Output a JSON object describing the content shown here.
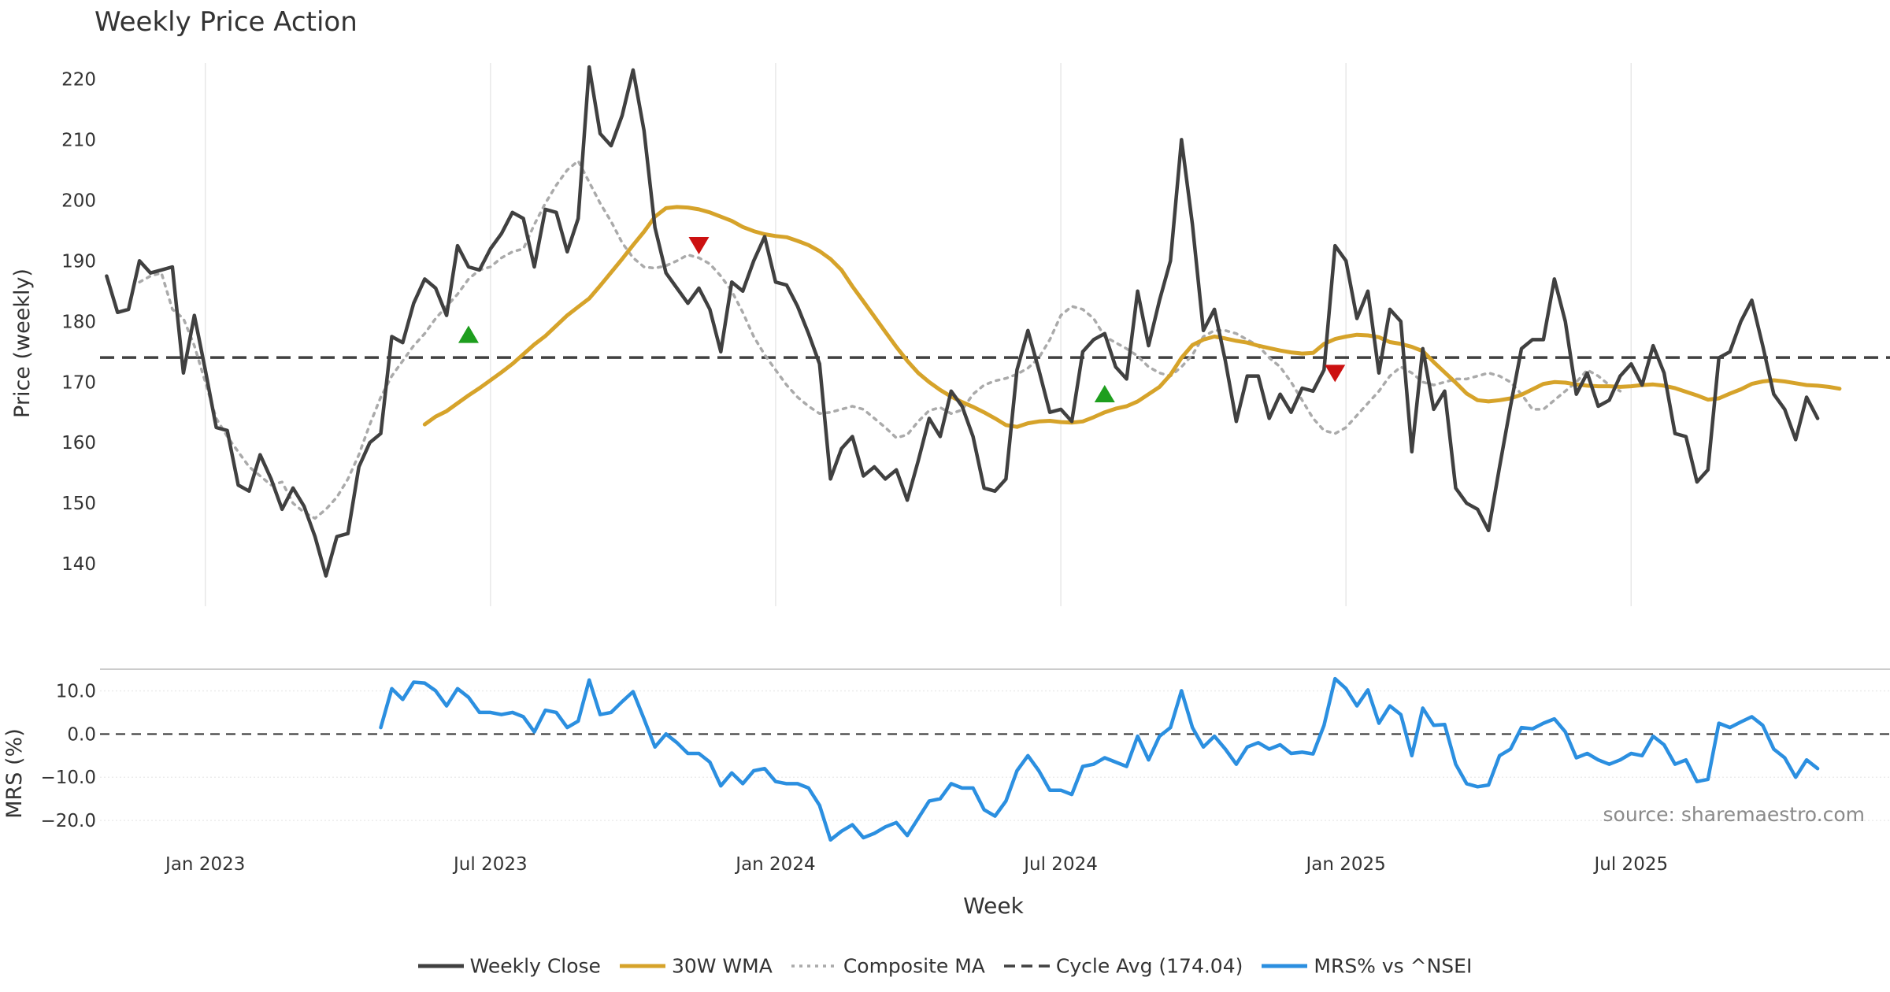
{
  "colors": {
    "close": "#404040",
    "wma": "#d6a32a",
    "composite": "#aaaaaa",
    "cycle": "#404040",
    "mrs": "#2b8fe0",
    "grid": "#e8e8e8",
    "buy": "#1e9e1e",
    "sell": "#cc1111"
  },
  "chart_data": [
    {
      "type": "line",
      "title": "Weekly Price Action",
      "xlabel": "Week",
      "ylabel": "Price (weekly)",
      "ylim": [
        133,
        225
      ],
      "yticks": [
        140,
        150,
        160,
        170,
        180,
        190,
        200,
        210,
        220
      ],
      "xlim": [
        -9.6,
        153.6
      ],
      "x_tick_weeks": [
        0,
        26,
        52,
        78,
        104,
        130
      ],
      "x_tick_labels": [
        "Jan 2023",
        "Jul 2023",
        "Jan 2024",
        "Jul 2024",
        "Jan 2025",
        "Jul 2025"
      ],
      "grid": "vertical",
      "series": [
        {
          "name": "Weekly Close",
          "start_week": -9,
          "values": [
            187.5,
            181.5,
            182,
            190,
            188,
            188.5,
            189,
            171.5,
            181,
            172,
            162.5,
            162,
            153,
            152,
            158,
            154,
            149,
            152.5,
            149.5,
            144.5,
            138,
            144.5,
            145,
            156,
            160,
            161.5,
            177.5,
            176.5,
            183,
            187,
            185.5,
            181,
            192.5,
            189,
            188.5,
            192,
            194.5,
            198,
            197,
            189,
            198.5,
            198,
            191.5,
            197,
            222,
            211,
            209,
            214,
            221.5,
            211.5,
            195.5,
            188,
            185.5,
            183,
            185.5,
            182,
            175,
            186.5,
            185,
            190,
            194,
            186.5,
            186,
            182.5,
            178,
            173,
            154,
            159,
            161,
            154.5,
            156,
            154,
            155.5,
            150.5,
            157,
            164,
            161,
            168.5,
            166,
            161,
            152.5,
            152,
            154,
            172,
            178.5,
            172,
            165,
            165.5,
            163.5,
            175,
            177,
            178,
            172.5,
            170.5,
            185,
            176,
            183.5,
            190,
            210,
            196,
            178.5,
            182,
            173.5,
            163.5,
            171,
            171,
            164,
            168,
            165,
            169,
            168.5,
            172,
            192.5,
            190,
            180.5,
            185,
            171.5,
            182,
            180,
            158.5,
            175.5,
            165.5,
            168.5,
            152.5,
            150,
            149,
            145.5,
            156,
            166,
            175.5,
            177,
            177,
            187,
            180,
            168,
            171.5,
            166,
            167,
            171,
            173,
            169.5,
            176,
            171.5,
            161.5,
            161,
            153.5,
            155.5,
            174,
            175,
            180,
            183.5,
            176,
            168,
            165.5,
            160.5,
            167.5,
            164
          ]
        },
        {
          "name": "30W WMA",
          "start_week": 20,
          "values": [
            163,
            164.3,
            165.2,
            166.5,
            167.8,
            169,
            170.3,
            171.6,
            173,
            174.6,
            176.2,
            177.6,
            179.3,
            181,
            182.4,
            183.8,
            185.9,
            188.1,
            190.3,
            192.6,
            194.8,
            197.3,
            198.7,
            198.9,
            198.8,
            198.5,
            198,
            197.3,
            196.6,
            195.6,
            194.9,
            194.4,
            194.1,
            193.9,
            193.3,
            192.6,
            191.6,
            190.3,
            188.5,
            185.8,
            183.3,
            180.8,
            178.3,
            175.8,
            173.5,
            171.5,
            170,
            168.7,
            167.6,
            166.7,
            165.9,
            165,
            164,
            162.9,
            162.6,
            163.2,
            163.5,
            163.6,
            163.4,
            163.3,
            163.5,
            164.2,
            165,
            165.6,
            166,
            166.8,
            168,
            169.2,
            171.2,
            174,
            176.1,
            177,
            177.5,
            177.2,
            176.8,
            176.5,
            176,
            175.6,
            175.2,
            174.9,
            174.7,
            174.8,
            176.3,
            177.1,
            177.5,
            177.8,
            177.7,
            177.4,
            176.6,
            176.3,
            175.8,
            175.1,
            173.3,
            171.6,
            169.9,
            168.1,
            167,
            166.8,
            167,
            167.3,
            167.9,
            168.8,
            169.7,
            170,
            169.9,
            169.6,
            169.4,
            169.3,
            169.3,
            169.2,
            169.3,
            169.5,
            169.6,
            169.4,
            169,
            168.4,
            167.8,
            167.1,
            167.3,
            168.1,
            168.8,
            169.7,
            170.1,
            170.3,
            170.1,
            169.8,
            169.5,
            169.4,
            169.2,
            168.9
          ]
        },
        {
          "name": "Composite MA",
          "start_week": -6,
          "values": [
            186.5,
            187.5,
            188,
            182,
            180.5,
            176,
            170,
            164,
            161,
            158.5,
            156,
            154.5,
            153,
            153.5,
            150,
            148.5,
            147.5,
            149,
            151,
            154,
            158,
            163,
            167.5,
            171,
            173.5,
            176,
            178,
            180.5,
            182.5,
            184.5,
            187,
            188.5,
            189,
            190.5,
            191.5,
            192,
            196,
            199.5,
            202.5,
            205,
            206.5,
            203,
            199.5,
            196.5,
            193,
            190.5,
            189,
            188.8,
            189.2,
            190,
            191,
            190.5,
            189.5,
            187.5,
            185,
            181.5,
            177.5,
            174.5,
            172,
            169.5,
            167.5,
            166,
            164.8,
            165,
            165.5,
            166,
            165.5,
            164,
            162.5,
            160.8,
            161.3,
            163.5,
            165.3,
            165.8,
            164.8,
            165.4,
            168,
            169.5,
            170.2,
            170.6,
            171.3,
            172.3,
            174,
            177,
            181,
            182.5,
            182,
            180.5,
            177.5,
            176.5,
            175.5,
            174.3,
            172.5,
            171.5,
            171,
            172.5,
            174.5,
            177.5,
            178.5,
            178.5,
            178,
            177,
            176,
            174,
            172.5,
            170,
            167,
            164,
            162,
            161.5,
            162.5,
            164.5,
            166.5,
            168.5,
            171,
            172.5,
            171.5,
            170,
            169.5,
            170,
            170.5,
            170.5,
            171,
            171.5,
            171,
            170,
            168,
            165.5,
            165.5,
            167,
            168.5,
            170,
            172,
            171,
            169.5,
            168.5
          ]
        },
        {
          "name": "Cycle Avg (174.04)",
          "value": 174.04
        }
      ],
      "annotations": [
        {
          "type": "buy",
          "week": 24,
          "price": 177.8
        },
        {
          "type": "sell",
          "week": 45,
          "price": 192.6
        },
        {
          "type": "buy",
          "week": 82,
          "price": 168
        },
        {
          "type": "sell",
          "week": 103,
          "price": 171.5
        }
      ]
    },
    {
      "type": "line",
      "xlabel": "Week",
      "ylabel": "MRS (%)",
      "ylim": [
        -26,
        15
      ],
      "yticks": [
        -20,
        -10,
        0,
        10
      ],
      "ytick_labels": [
        "−20.0",
        "−10.0",
        "0.0",
        "10.0"
      ],
      "series": [
        {
          "name": "MRS% vs ^NSEI",
          "start_week": 16,
          "values": [
            1.5,
            10.5,
            8,
            12,
            11.8,
            10,
            6.5,
            10.5,
            8.5,
            5,
            5,
            4.5,
            5,
            4,
            0.5,
            5.5,
            5,
            1.5,
            3,
            12.5,
            4.5,
            5,
            7.5,
            9.8,
            3.5,
            -3,
            0,
            -2,
            -4.5,
            -4.5,
            -6.5,
            -12,
            -9,
            -11.5,
            -8.5,
            -8,
            -11,
            -11.5,
            -11.5,
            -12.5,
            -16.5,
            -24.5,
            -22.5,
            -21,
            -24,
            -23,
            -21.5,
            -20.5,
            -23.5,
            -19.5,
            -15.5,
            -15,
            -11.5,
            -12.5,
            -12.5,
            -17.5,
            -19,
            -15.5,
            -8.5,
            -5,
            -8.5,
            -13,
            -13,
            -14,
            -7.5,
            -7,
            -5.5,
            -6.5,
            -7.5,
            -0.5,
            -6,
            -0.5,
            1.5,
            10,
            1.5,
            -3,
            -0.5,
            -3.5,
            -7,
            -3,
            -2,
            -3.5,
            -2.5,
            -4.5,
            -4.2,
            -4.6,
            2,
            12.8,
            10.5,
            6.5,
            10.2,
            2.5,
            6.5,
            4.5,
            -5,
            6,
            2,
            2.2,
            -7,
            -11.5,
            -12.2,
            -11.8,
            -5,
            -3.5,
            1.5,
            1.2,
            2.5,
            3.5,
            0.5,
            -5.5,
            -4.5,
            -6,
            -7,
            -6,
            -4.5,
            -5,
            -0.5,
            -2.5,
            -7,
            -6,
            -11,
            -10.5,
            2.5,
            1.5,
            2.8,
            4,
            2,
            -3.5,
            -5.5,
            -10,
            -6,
            -8
          ]
        }
      ],
      "reference_line": 0
    }
  ],
  "labels": {
    "title": "Weekly Price Action",
    "xlabel": "Week",
    "ylabel_price": "Price (weekly)",
    "ylabel_mrs": "MRS (%)",
    "source": "source: sharemaestro.com"
  },
  "legend": [
    {
      "key": "close",
      "label": "Weekly Close",
      "style": "solid"
    },
    {
      "key": "wma",
      "label": "30W WMA",
      "style": "solid"
    },
    {
      "key": "composite",
      "label": "Composite MA",
      "style": "dotted"
    },
    {
      "key": "cycle",
      "label": "Cycle Avg (174.04)",
      "style": "dashed"
    },
    {
      "key": "mrs",
      "label": "MRS% vs ^NSEI",
      "style": "solid"
    }
  ]
}
